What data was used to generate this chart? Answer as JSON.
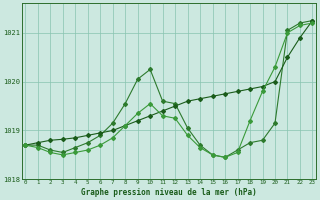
{
  "x_all": [
    0,
    1,
    2,
    3,
    4,
    5,
    6,
    7,
    8,
    9,
    10,
    11,
    12,
    13,
    14,
    15,
    16,
    17,
    18,
    19,
    20,
    21,
    22,
    23
  ],
  "line_zigzag": [
    1018.7,
    1018.7,
    1018.6,
    1018.55,
    1018.65,
    1018.75,
    1018.9,
    1019.15,
    1019.55,
    1020.05,
    1020.25,
    1019.6,
    1019.55,
    1019.05,
    1018.7,
    1018.5,
    1018.45,
    1018.6,
    1018.75,
    1018.8,
    1019.15,
    1021.05,
    1021.2,
    1021.25
  ],
  "line_straight": [
    1018.7,
    1018.75,
    1018.8,
    1018.82,
    1018.85,
    1018.9,
    1018.95,
    1019.0,
    1019.1,
    1019.2,
    1019.3,
    1019.4,
    1019.5,
    1019.6,
    1019.65,
    1019.7,
    1019.75,
    1019.8,
    1019.85,
    1019.9,
    1020.0,
    1020.5,
    1020.9,
    1021.25
  ],
  "line_valley": [
    1018.7,
    1018.65,
    1018.55,
    1018.5,
    1018.55,
    1018.6,
    1018.7,
    1018.85,
    1019.1,
    1019.35,
    1019.55,
    1019.3,
    1019.25,
    1018.9,
    1018.65,
    1018.5,
    1018.45,
    1018.55,
    1019.2,
    1019.8,
    1020.3,
    1021.0,
    1021.15,
    1021.2
  ],
  "color_main": "#2d7a2d",
  "color_straight": "#1a5c1a",
  "color_valley": "#3a9a3a",
  "background_color": "#cce8e0",
  "grid_color": "#88c4b0",
  "xlabel": "Graphe pression niveau de la mer (hPa)",
  "ylim": [
    1018.0,
    1021.6
  ],
  "yticks": [
    1018,
    1019,
    1020,
    1021
  ],
  "xticks": [
    0,
    1,
    2,
    3,
    4,
    5,
    6,
    7,
    8,
    9,
    10,
    11,
    12,
    13,
    14,
    15,
    16,
    17,
    18,
    19,
    20,
    21,
    22,
    23
  ]
}
